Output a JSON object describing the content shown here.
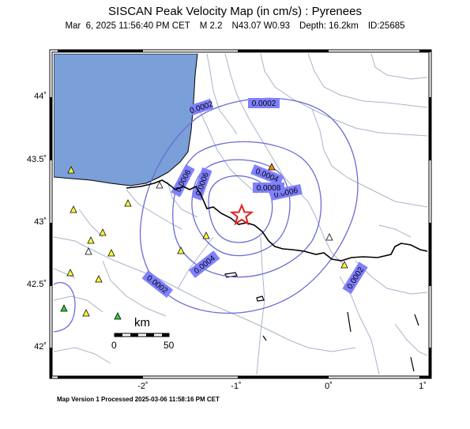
{
  "header": {
    "title": "SISCAN Peak Velocity Map (in cm/s) : Pyrenees",
    "date": "Mar  6, 2025 11:56:40 PM CET",
    "magnitude": "M 2.2",
    "location": "N43.07 W0.93",
    "depth": "Depth: 16.2km",
    "event_id": "ID:25685"
  },
  "footer": {
    "version_text": "Map Version 1 Processed 2025-03-06 11:58:16 PM CET"
  },
  "axes": {
    "lat_ticks": [
      "44˚",
      "43.5˚",
      "43˚",
      "42.5˚",
      "42˚"
    ],
    "lon_ticks": [
      "-2˚",
      "-1˚",
      "0˚",
      "1˚"
    ]
  },
  "scale_bar": {
    "unit": "km",
    "start": "0",
    "end": "50"
  },
  "contours": {
    "labels": [
      "0.0002",
      "0.0002",
      "0.0002",
      "0.0002",
      "0.0006",
      "0.0004",
      "0.0004",
      "0.0006",
      "0.0006",
      "0.0008"
    ]
  },
  "colors": {
    "sea": "#7a9fd9",
    "contour": "#6b6bd6",
    "label_box": "#8080ff",
    "rivers": "#a9b4c9",
    "border": "#000000",
    "epicenter": "#e02020",
    "station_yellow": "#ffff33",
    "station_white": "#ffffff",
    "station_green": "#33cc33",
    "station_orange": "#ff8800"
  },
  "markers": {
    "epicenter_icon": "star-icon",
    "station_icon": "triangle-icon"
  }
}
